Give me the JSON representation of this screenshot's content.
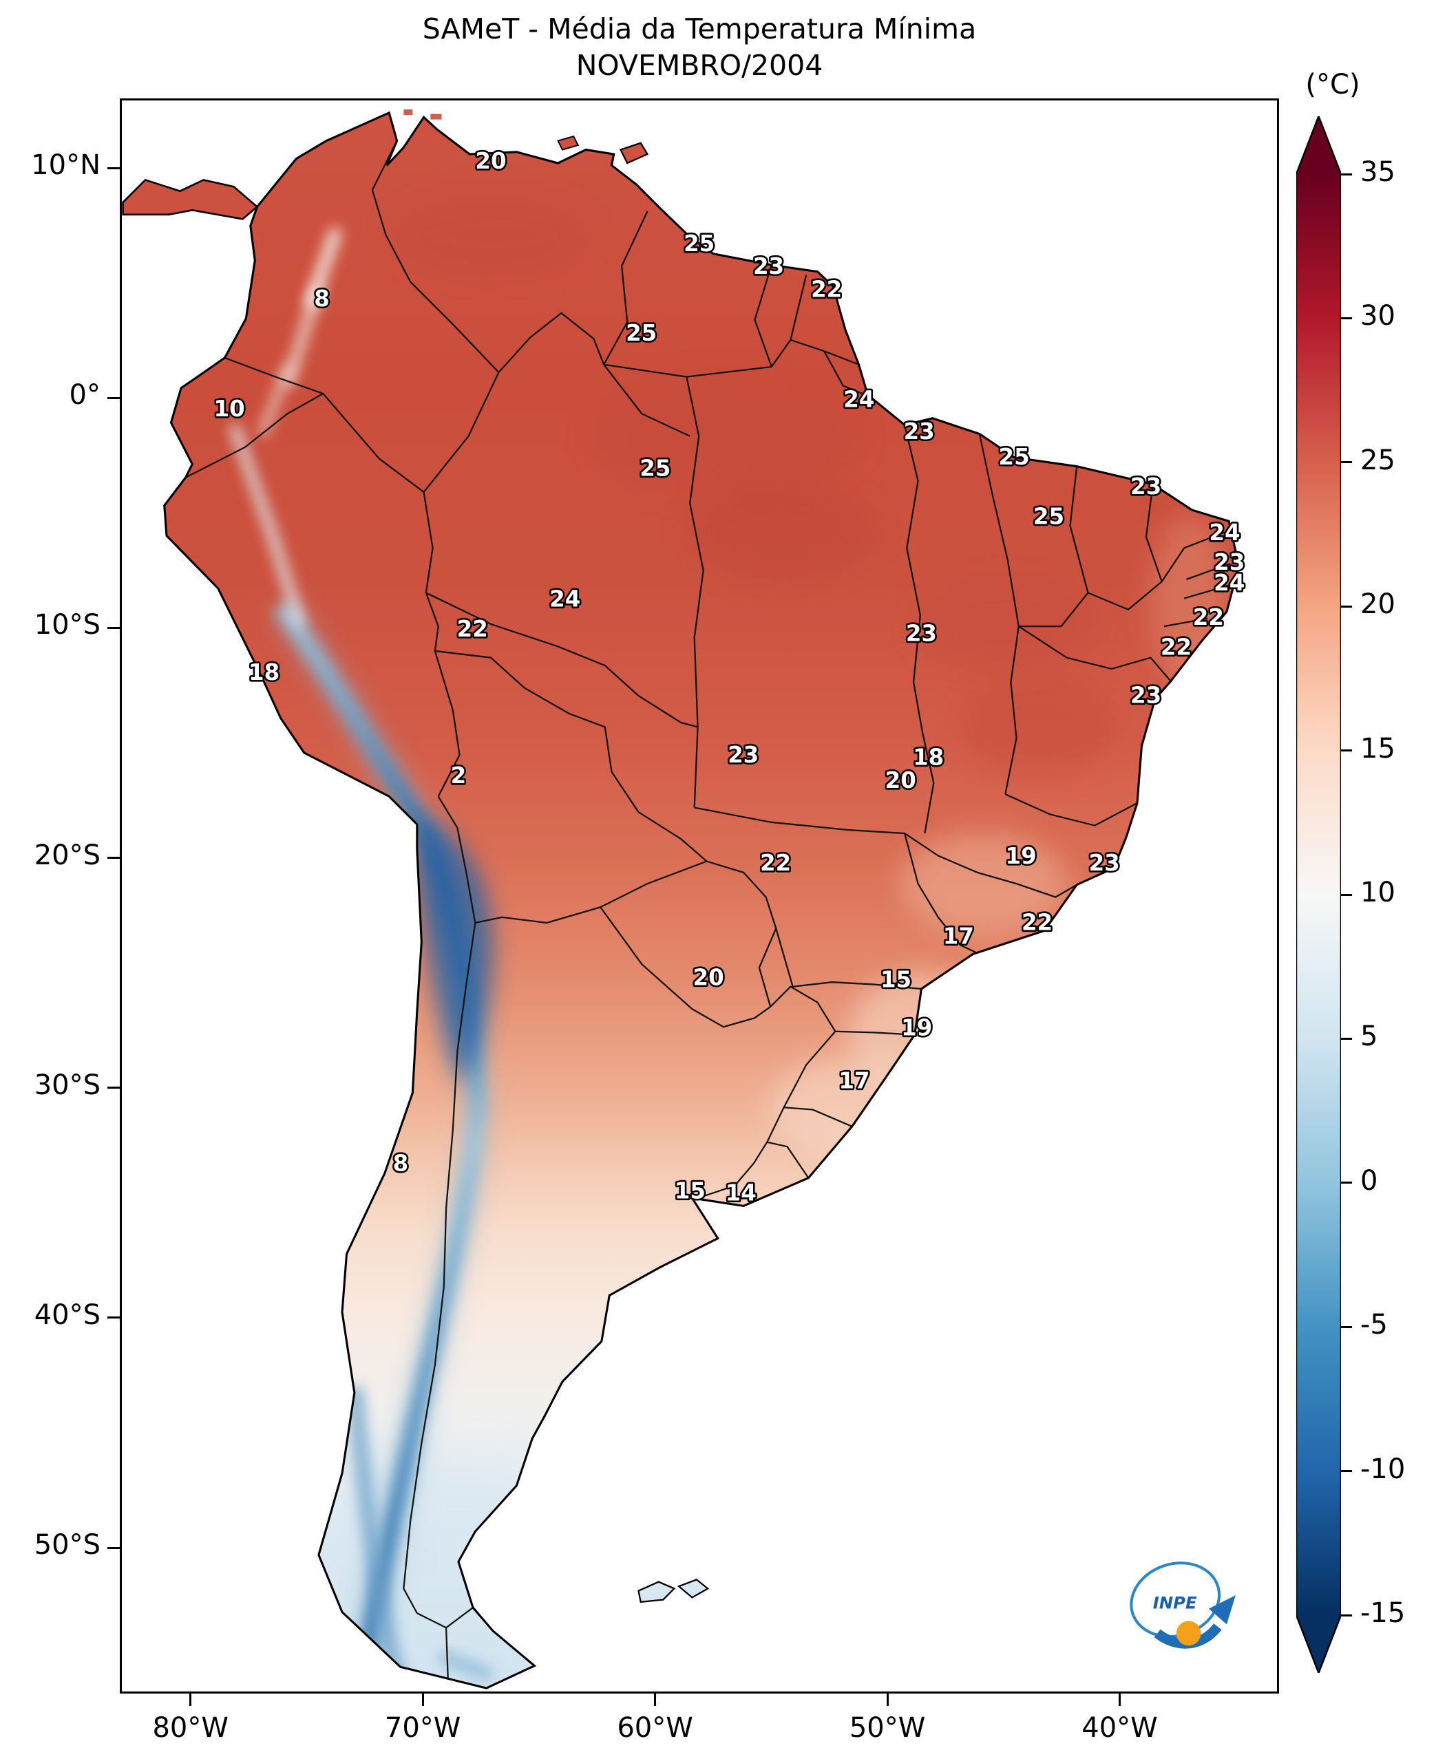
{
  "title": "SAMeT - Média da Temperatura Mínima",
  "subtitle": "NOVEMBRO/2004",
  "logo": {
    "text": "INPE"
  },
  "colorbar": {
    "unit_label": "(°C)",
    "vmin": -15,
    "vmax": 35,
    "ticks": [
      35,
      30,
      25,
      20,
      15,
      10,
      5,
      0,
      -5,
      -10,
      -15
    ],
    "colors_top_to_bottom": [
      "#67001f",
      "#b2182b",
      "#d6604d",
      "#f4a582",
      "#fddbc7",
      "#f7f7f7",
      "#d1e5f0",
      "#92c5de",
      "#4393c3",
      "#2166ac",
      "#053061"
    ]
  },
  "axes": {
    "lat_ticks": [
      {
        "label": "10°N",
        "lat": 10
      },
      {
        "label": "0°",
        "lat": 0
      },
      {
        "label": "10°S",
        "lat": -10
      },
      {
        "label": "20°S",
        "lat": -20
      },
      {
        "label": "30°S",
        "lat": -30
      },
      {
        "label": "40°S",
        "lat": -40
      },
      {
        "label": "50°S",
        "lat": -50
      }
    ],
    "lon_ticks": [
      {
        "label": "80°W",
        "lon_w": 80
      },
      {
        "label": "70°W",
        "lon_w": 70
      },
      {
        "label": "60°W",
        "lon_w": 60
      },
      {
        "label": "50°W",
        "lon_w": 50
      },
      {
        "label": "40°W",
        "lon_w": 40
      }
    ]
  },
  "chart_data": {
    "type": "heatmap",
    "region": "South America",
    "variable": "Média da Temperatura Mínima",
    "period": "NOVEMBRO/2004",
    "units": "°C",
    "scale_range": [
      -15,
      35
    ],
    "legend_position": "right",
    "points": [
      {
        "value": 20,
        "lon_w": 67.1,
        "lat": 10.4
      },
      {
        "value": 8,
        "lon_w": 74.4,
        "lat": 4.4
      },
      {
        "value": 25,
        "lon_w": 58.1,
        "lat": 6.8
      },
      {
        "value": 23,
        "lon_w": 55.1,
        "lat": 5.8
      },
      {
        "value": 22,
        "lon_w": 52.6,
        "lat": 4.8
      },
      {
        "value": 25,
        "lon_w": 60.6,
        "lat": 2.9
      },
      {
        "value": 10,
        "lon_w": 78.4,
        "lat": -0.4
      },
      {
        "value": 24,
        "lon_w": 51.2,
        "lat": 0.0
      },
      {
        "value": 23,
        "lon_w": 48.6,
        "lat": -1.4
      },
      {
        "value": 25,
        "lon_w": 44.5,
        "lat": -2.5
      },
      {
        "value": 23,
        "lon_w": 38.8,
        "lat": -3.8
      },
      {
        "value": 25,
        "lon_w": 60.0,
        "lat": -3.0
      },
      {
        "value": 25,
        "lon_w": 43.0,
        "lat": -5.1
      },
      {
        "value": 24,
        "lon_w": 35.4,
        "lat": -5.8
      },
      {
        "value": 23,
        "lon_w": 35.2,
        "lat": -7.1
      },
      {
        "value": 24,
        "lon_w": 35.2,
        "lat": -8.0
      },
      {
        "value": 22,
        "lon_w": 36.1,
        "lat": -9.5
      },
      {
        "value": 24,
        "lon_w": 63.9,
        "lat": -8.7
      },
      {
        "value": 22,
        "lon_w": 67.9,
        "lat": -10.0
      },
      {
        "value": 23,
        "lon_w": 48.5,
        "lat": -10.2
      },
      {
        "value": 22,
        "lon_w": 37.5,
        "lat": -10.8
      },
      {
        "value": 18,
        "lon_w": 76.9,
        "lat": -11.9
      },
      {
        "value": 23,
        "lon_w": 38.8,
        "lat": -12.9
      },
      {
        "value": 23,
        "lon_w": 56.2,
        "lat": -15.5
      },
      {
        "value": 18,
        "lon_w": 48.2,
        "lat": -15.6
      },
      {
        "value": 20,
        "lon_w": 49.4,
        "lat": -16.6
      },
      {
        "value": 2,
        "lon_w": 68.5,
        "lat": -16.4
      },
      {
        "value": 19,
        "lon_w": 44.2,
        "lat": -19.9
      },
      {
        "value": 22,
        "lon_w": 54.8,
        "lat": -20.2
      },
      {
        "value": 23,
        "lon_w": 40.6,
        "lat": -20.2
      },
      {
        "value": 22,
        "lon_w": 43.5,
        "lat": -22.8
      },
      {
        "value": 17,
        "lon_w": 46.9,
        "lat": -23.4
      },
      {
        "value": 15,
        "lon_w": 49.6,
        "lat": -25.3
      },
      {
        "value": 20,
        "lon_w": 57.7,
        "lat": -25.2
      },
      {
        "value": 19,
        "lon_w": 48.7,
        "lat": -27.4
      },
      {
        "value": 17,
        "lon_w": 51.4,
        "lat": -29.7
      },
      {
        "value": 8,
        "lon_w": 71.0,
        "lat": -33.3
      },
      {
        "value": 15,
        "lon_w": 58.5,
        "lat": -34.5
      },
      {
        "value": 14,
        "lon_w": 56.3,
        "lat": -34.6
      }
    ]
  }
}
